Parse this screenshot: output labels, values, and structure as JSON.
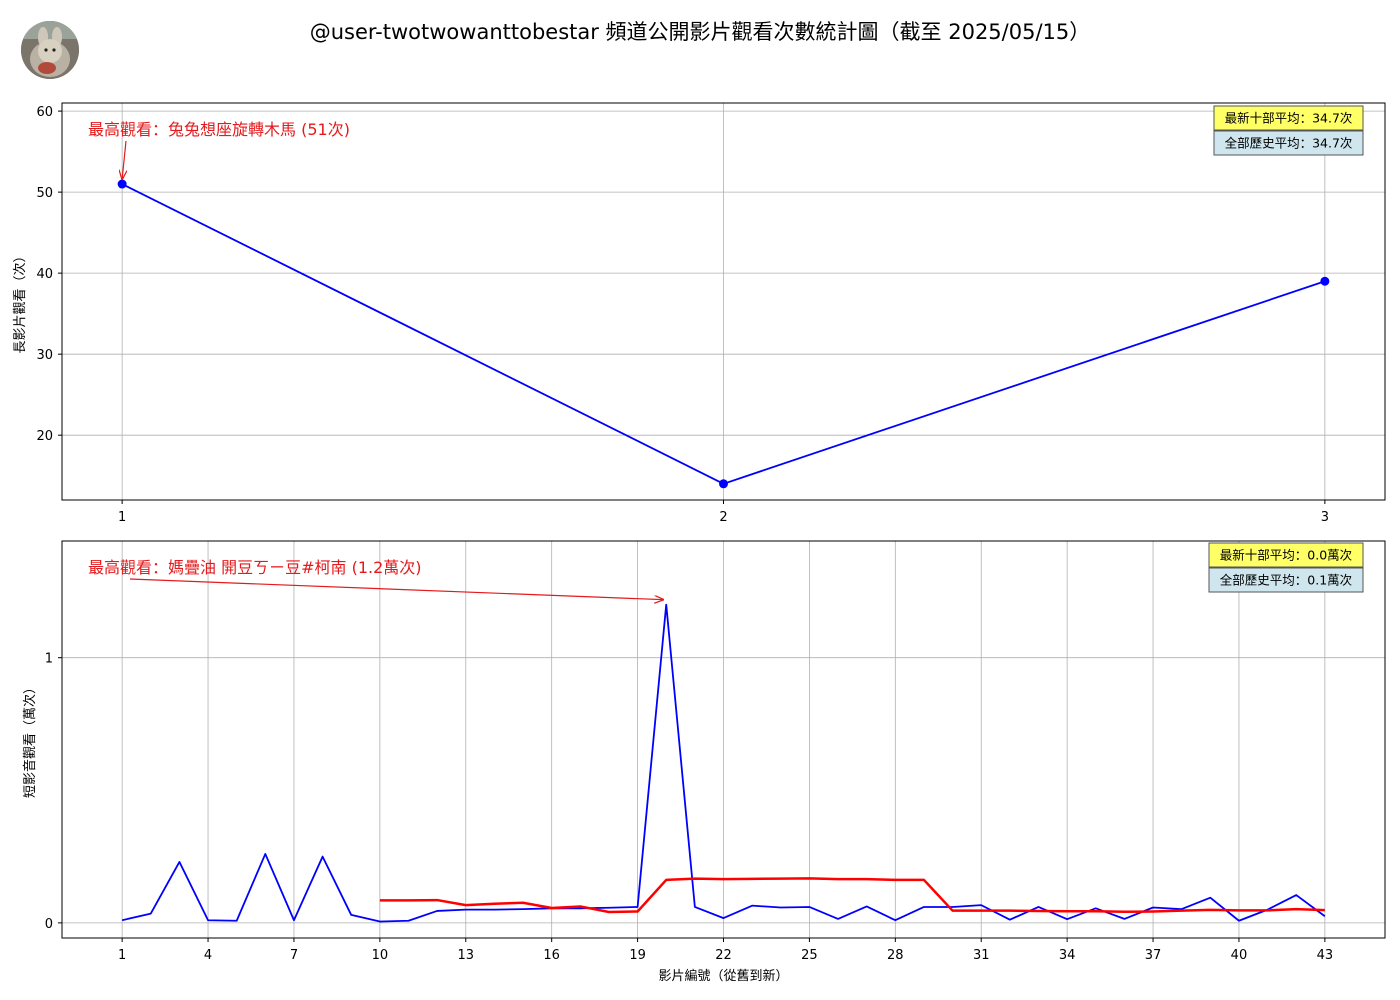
{
  "title": "@user-twotwowanttobestar 頻道公開影片觀看次數統計圖（截至 2025/05/15）",
  "colors": {
    "views": "#0000ff",
    "rolling_avg": "#ff0000",
    "annotation": "#e41a1c",
    "box_recent": "#ffff66",
    "box_all": "#cfe6ee"
  },
  "chart_data": [
    {
      "type": "line",
      "ylabel": "長影片觀看（次）",
      "x": [
        1,
        2,
        3
      ],
      "xticks": [
        1,
        2,
        3
      ],
      "yticks": [
        20,
        30,
        40,
        50,
        60
      ],
      "xlim": [
        0.9,
        3.1
      ],
      "ylim": [
        12,
        61
      ],
      "grid": true,
      "series": [
        {
          "values": [
            51,
            14,
            39
          ],
          "markers": true
        }
      ],
      "annotation": {
        "text": "最高觀看：兔兔想座旋轉木馬 (51次)",
        "x": 1,
        "y": 51
      },
      "summary": {
        "recent": "最新十部平均：34.7次",
        "all": "全部歷史平均：34.7次"
      }
    },
    {
      "type": "line",
      "ylabel": "短影音觀看（萬次）",
      "xlabel": "影片編號（從舊到新）",
      "xticks": [
        1,
        4,
        7,
        10,
        13,
        16,
        19,
        22,
        25,
        28,
        31,
        34,
        37,
        40,
        43
      ],
      "yticks": [
        0,
        1
      ],
      "xlim": [
        -1.1,
        45.1
      ],
      "ylim": [
        -0.057,
        1.44
      ],
      "grid": true,
      "x": [
        1,
        2,
        3,
        4,
        5,
        6,
        7,
        8,
        9,
        10,
        11,
        12,
        13,
        14,
        15,
        16,
        17,
        18,
        19,
        20,
        21,
        22,
        23,
        24,
        25,
        26,
        27,
        28,
        29,
        30,
        31,
        32,
        33,
        34,
        35,
        36,
        37,
        38,
        39,
        40,
        41,
        42,
        43
      ],
      "series": [
        {
          "values": [
            0.01,
            0.035,
            0.23,
            0.01,
            0.008,
            0.26,
            0.01,
            0.25,
            0.03,
            0.005,
            0.008,
            0.045,
            0.05,
            0.05,
            0.052,
            0.055,
            0.055,
            0.057,
            0.06,
            1.2,
            0.06,
            0.018,
            0.065,
            0.058,
            0.06,
            0.015,
            0.062,
            0.01,
            0.06,
            0.06,
            0.067,
            0.012,
            0.06,
            0.014,
            0.055,
            0.015,
            0.058,
            0.052,
            0.095,
            0.008,
            0.05,
            0.105,
            0.025
          ],
          "color": "views"
        },
        {
          "x": [
            10,
            11,
            12,
            13,
            14,
            15,
            16,
            17,
            18,
            19,
            20,
            21,
            22,
            23,
            24,
            25,
            26,
            27,
            28,
            29,
            30,
            31,
            32,
            33,
            34,
            35,
            36,
            37,
            38,
            39,
            40,
            41,
            42,
            43
          ],
          "values": [
            0.085,
            0.085,
            0.086,
            0.067,
            0.072,
            0.076,
            0.056,
            0.062,
            0.041,
            0.043,
            0.162,
            0.167,
            0.165,
            0.166,
            0.167,
            0.168,
            0.165,
            0.165,
            0.162,
            0.162,
            0.046,
            0.046,
            0.046,
            0.045,
            0.044,
            0.044,
            0.042,
            0.043,
            0.046,
            0.049,
            0.047,
            0.047,
            0.052,
            0.048
          ],
          "color": "rolling_avg"
        }
      ],
      "annotation": {
        "text": "最高觀看：媽疊油 開豆ㄎㄧ豆#柯南 (1.2萬次)",
        "x": 20,
        "y": 1.2
      },
      "summary": {
        "recent": "最新十部平均：0.0萬次",
        "all": "全部歷史平均：0.1萬次"
      }
    }
  ]
}
